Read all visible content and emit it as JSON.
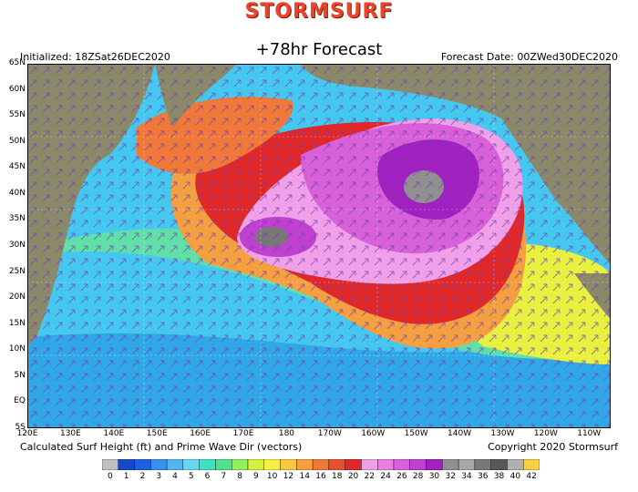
{
  "header": {
    "brand": "STORMSURF",
    "subtitle": "+78hr Forecast",
    "initialized": "Initialized: 18ZSat26DEC2020",
    "forecast_date": "Forecast Date: 00ZWed30DEC2020"
  },
  "footer": {
    "caption": "Calculated Surf Height (ft) and Prime Wave Dir (vectors)",
    "copyright": "Copyright 2020 Stormsurf"
  },
  "map": {
    "lat_labels": [
      "65N",
      "60N",
      "55N",
      "50N",
      "45N",
      "40N",
      "35N",
      "30N",
      "25N",
      "20N",
      "15N",
      "10N",
      "5N",
      "EQ",
      "5S"
    ],
    "lon_labels": [
      "120E",
      "130E",
      "140E",
      "150E",
      "160E",
      "170E",
      "180",
      "170W",
      "160W",
      "150W",
      "140W",
      "130W",
      "120W",
      "110W"
    ],
    "colors": {
      "land": "#8a8a6a",
      "ocean_low": "#44c8f0",
      "ocean_mid": "#66e0a0",
      "high": "#e83030",
      "extreme": "#c040d0"
    }
  },
  "legend": {
    "labels": [
      "0",
      "1",
      "2",
      "3",
      "4",
      "5",
      "6",
      "7",
      "8",
      "9",
      "10",
      "12",
      "14",
      "16",
      "18",
      "20",
      "22",
      "24",
      "26",
      "28",
      "30",
      "32",
      "34",
      "36",
      "38",
      "40",
      "42"
    ],
    "colors": [
      "#c0c0c0",
      "#1848c8",
      "#2060e0",
      "#3890f0",
      "#50b8f0",
      "#68d8f0",
      "#40e0c0",
      "#50e090",
      "#90f060",
      "#d8f040",
      "#f8f040",
      "#f8c840",
      "#f8a040",
      "#f07838",
      "#e85030",
      "#e02828",
      "#f0a0e8",
      "#e880e0",
      "#d860d8",
      "#c040d0",
      "#a020c0",
      "#909090",
      "#a8a8a8",
      "#787878",
      "#585858",
      "#b0b0b0",
      "#f8d040"
    ]
  }
}
